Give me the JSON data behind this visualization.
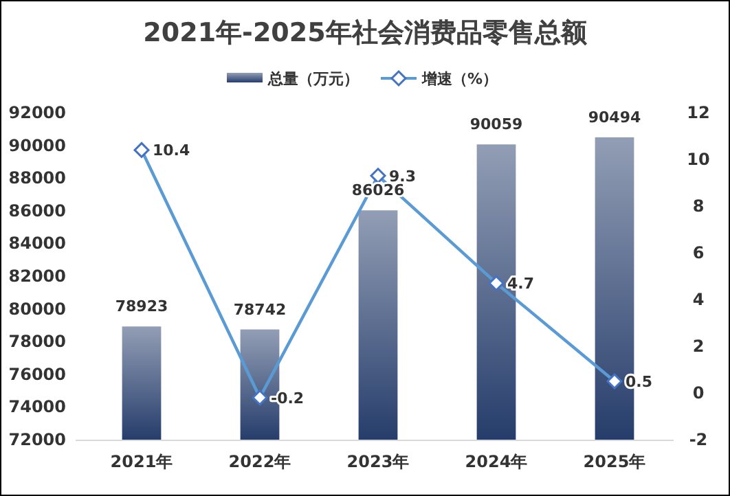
{
  "chart_data": {
    "type": "bar",
    "title": "2021年-2025年社会消费品零售总额",
    "categories": [
      "2021年",
      "2022年",
      "2023年",
      "2024年",
      "2025年"
    ],
    "series": [
      {
        "name": "总量（万元）",
        "color": "#263d6b",
        "values": [
          78923,
          78742,
          86026,
          90059,
          90494
        ]
      },
      {
        "name": "增速（%）",
        "type": "line",
        "axis": "y2",
        "color": "#5b9bd5",
        "values": [
          10.4,
          -0.2,
          9.3,
          4.7,
          0.5
        ]
      }
    ],
    "ylim": [
      72000,
      92000
    ],
    "yticks": [
      72000,
      74000,
      76000,
      78000,
      80000,
      82000,
      84000,
      86000,
      88000,
      90000,
      92000
    ],
    "y2lim": [
      -2,
      12
    ],
    "y2ticks": [
      -2,
      0,
      2,
      4,
      6,
      8,
      10,
      12
    ],
    "marker": "diamond",
    "data_labels": true,
    "legend": "top"
  }
}
